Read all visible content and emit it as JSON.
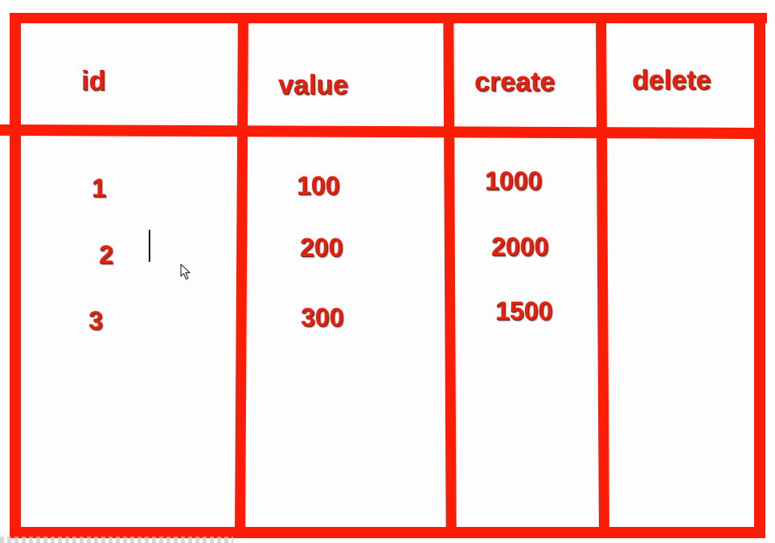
{
  "table": {
    "headers": {
      "id": "id",
      "value": "value",
      "create": "create",
      "delete": "delete"
    },
    "rows": [
      {
        "id": "1",
        "value": "100",
        "create": "1000"
      },
      {
        "id": "2",
        "value": "200",
        "create": "2000"
      },
      {
        "id": "3",
        "value": "300",
        "create": "1500"
      }
    ]
  },
  "colors": {
    "stroke": "#fb1d07",
    "text": "#e5200e"
  },
  "icons": {
    "text_cursor": "text-caret-icon",
    "mouse_pointer": "mouse-pointer-icon"
  }
}
